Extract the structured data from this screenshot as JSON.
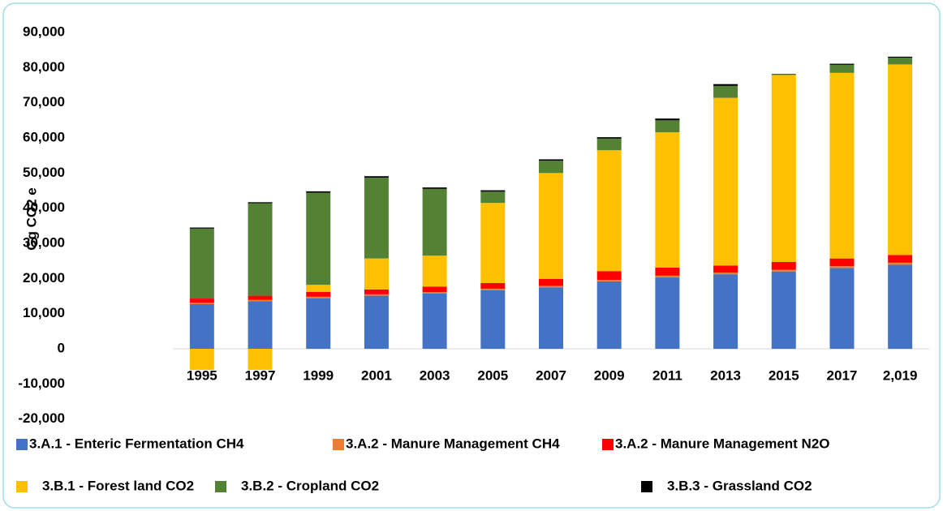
{
  "chart_data": {
    "type": "stacked_bar",
    "y_axis_label": "Gg CO2 e",
    "categories": [
      "1995",
      "1997",
      "1999",
      "2001",
      "2003",
      "2005",
      "2007",
      "2009",
      "2011",
      "2013",
      "2015",
      "2017",
      "2,019"
    ],
    "series": [
      {
        "name": "3.A.1 - Enteric Fermentation CH4",
        "color": "#4472c4",
        "values": [
          12700,
          13500,
          14400,
          15100,
          15700,
          16700,
          17500,
          19200,
          20300,
          21200,
          22000,
          23000,
          23900
        ]
      },
      {
        "name": "3.A.2 - Manure Management CH4",
        "color": "#ed7d31",
        "values": [
          400,
          400,
          400,
          400,
          400,
          400,
          400,
          400,
          500,
          500,
          500,
          500,
          600
        ]
      },
      {
        "name": "3.A.2 - Manure Management N2O",
        "color": "#ff0000",
        "values": [
          1200,
          1200,
          1400,
          1400,
          1600,
          1600,
          2000,
          2500,
          2300,
          2000,
          2200,
          2200,
          2200
        ]
      },
      {
        "name": "3.B.1 - Forest land CO2",
        "color": "#ffc000",
        "values": [
          -6000,
          -6000,
          2000,
          8800,
          8800,
          22800,
          30100,
          34400,
          38500,
          47700,
          53200,
          52800,
          54200
        ]
      },
      {
        "name": "3.B.2 - Cropland CO2",
        "color": "#548235",
        "values": [
          19900,
          26300,
          26200,
          23000,
          19000,
          3200,
          3500,
          3300,
          3400,
          3400,
          200,
          2300,
          1900
        ]
      },
      {
        "name": "3.B.3 - Grassland CO2",
        "color": "#000000",
        "values": [
          300,
          300,
          400,
          400,
          400,
          400,
          400,
          400,
          500,
          500,
          100,
          300,
          300
        ]
      }
    ],
    "ylim": [
      -20000,
      90000
    ],
    "yticks": [
      {
        "value": -20000,
        "label": "-20,000"
      },
      {
        "value": -10000,
        "label": "-10,000"
      },
      0,
      {
        "value": 10000,
        "label": "10,000"
      },
      {
        "value": 20000,
        "label": "20,000"
      },
      {
        "value": 30000,
        "label": "30,000"
      },
      {
        "value": 40000,
        "label": "40,000"
      },
      {
        "value": 50000,
        "label": "50,000"
      },
      {
        "value": 60000,
        "label": "60,000"
      },
      {
        "value": 70000,
        "label": "70,000"
      },
      {
        "value": 80000,
        "label": "80,000"
      },
      {
        "value": 90000,
        "label": "90,000"
      }
    ],
    "grid": false,
    "legend": "bottom"
  }
}
